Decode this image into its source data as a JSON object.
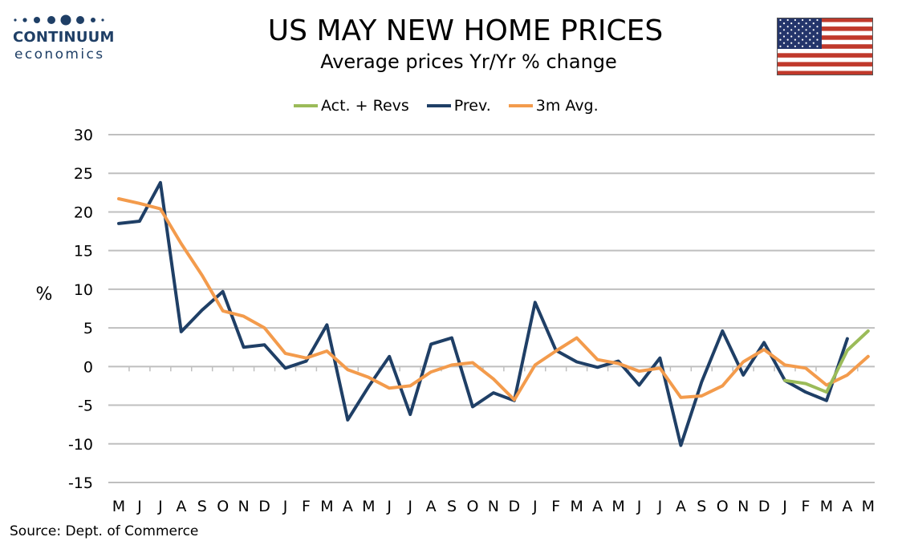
{
  "header": {
    "title": "US MAY NEW HOME PRICES",
    "subtitle": "Average prices Yr/Yr % change"
  },
  "logo": {
    "brand": "CONTINUUM",
    "sub": "economics",
    "color": "#1f3f66"
  },
  "footer": {
    "source": "Source: Dept. of Commerce"
  },
  "chart_data": {
    "type": "line",
    "ylabel": "%",
    "ylim": [
      -15,
      30
    ],
    "yticks": [
      30,
      25,
      20,
      15,
      10,
      5,
      0,
      -5,
      -10,
      -15
    ],
    "grid": true,
    "legend_position": "top-center",
    "categories": [
      "M",
      "J",
      "J",
      "A",
      "S",
      "O",
      "N",
      "D",
      "J",
      "F",
      "M",
      "A",
      "M",
      "J",
      "J",
      "A",
      "S",
      "O",
      "N",
      "D",
      "J",
      "F",
      "M",
      "A",
      "M",
      "J",
      "J",
      "A",
      "S",
      "O",
      "N",
      "D",
      "J",
      "F",
      "M",
      "A",
      "M"
    ],
    "series": [
      {
        "name": "Act. + Revs",
        "color": "#9bbb59",
        "values": [
          null,
          null,
          null,
          null,
          null,
          null,
          null,
          null,
          null,
          null,
          null,
          null,
          null,
          null,
          null,
          null,
          null,
          null,
          null,
          null,
          null,
          null,
          null,
          null,
          null,
          null,
          null,
          null,
          null,
          null,
          null,
          null,
          -1.8,
          -2.2,
          -3.3,
          2.1,
          4.6
        ]
      },
      {
        "name": "Prev.",
        "color": "#1f3f66",
        "values": [
          18.5,
          18.8,
          23.8,
          4.5,
          7.3,
          9.7,
          2.5,
          2.8,
          -0.2,
          0.7,
          5.4,
          -6.9,
          -2.6,
          1.3,
          -6.2,
          2.9,
          3.7,
          -5.2,
          -3.4,
          -4.4,
          8.3,
          2.1,
          0.6,
          -0.1,
          0.7,
          -2.4,
          1.1,
          -10.2,
          -2.0,
          4.6,
          -1.1,
          3.1,
          -1.8,
          -3.3,
          -4.4,
          3.6,
          null
        ]
      },
      {
        "name": "3m Avg.",
        "color": "#f39b4c",
        "values": [
          21.7,
          21.1,
          20.4,
          15.9,
          11.8,
          7.2,
          6.5,
          5.0,
          1.7,
          1.1,
          2.0,
          -0.4,
          -1.4,
          -2.8,
          -2.5,
          -0.7,
          0.2,
          0.5,
          -1.6,
          -4.3,
          0.2,
          2.0,
          3.7,
          0.9,
          0.4,
          -0.6,
          -0.2,
          -4.0,
          -3.8,
          -2.5,
          0.6,
          2.2,
          0.2,
          -0.2,
          -2.4,
          -1.1,
          1.3
        ]
      }
    ]
  }
}
